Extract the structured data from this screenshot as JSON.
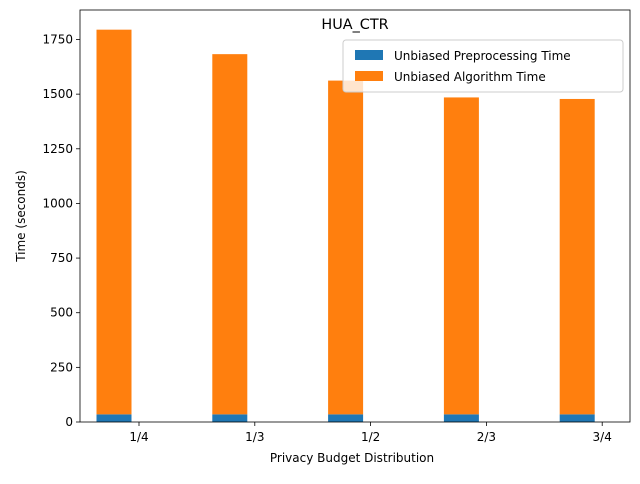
{
  "chart_data": {
    "type": "bar",
    "stacked": true,
    "title": "HUA_CTR",
    "xlabel": "Privacy Budget Distribution",
    "ylabel": "Time (seconds)",
    "categories": [
      "1/4",
      "1/3",
      "1/2",
      "2/3",
      "3/4"
    ],
    "series": [
      {
        "name": "Unbiased Preprocessing Time",
        "color": "#1f77b4",
        "values": [
          35,
          35,
          35,
          35,
          35
        ]
      },
      {
        "name": "Unbiased Algorithm Time",
        "color": "#ff7f0e",
        "values": [
          1760,
          1648,
          1527,
          1450,
          1443
        ]
      }
    ],
    "ylim": [
      0,
      1885
    ],
    "yticks": [
      0,
      250,
      500,
      750,
      1000,
      1250,
      1500,
      1750
    ],
    "legend_position": "top-right",
    "grid": false
  }
}
